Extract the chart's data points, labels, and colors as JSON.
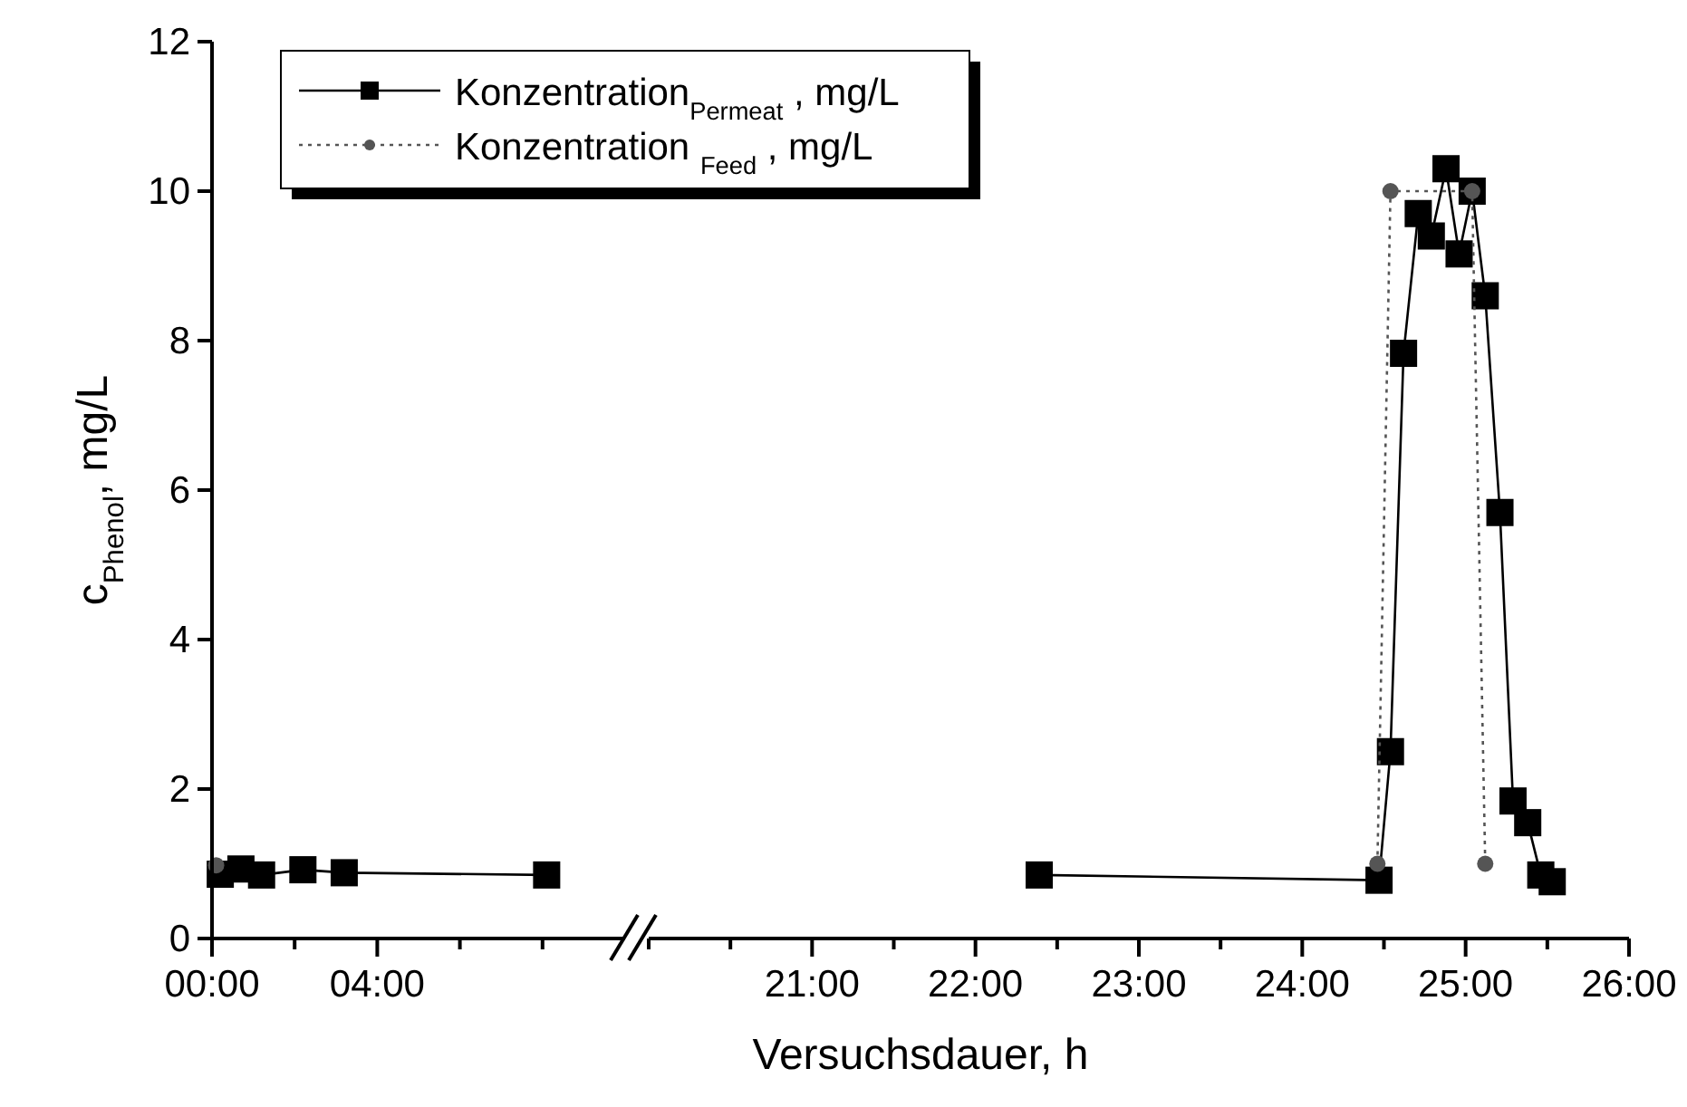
{
  "chart_data": [
    {
      "type": "line",
      "ylabel": "c$_{Phenol}$, mg/L",
      "xlim": [
        0,
        10
      ],
      "xticks": [
        {
          "value": 0,
          "label": "00:00"
        },
        {
          "value": 2,
          "label": null
        },
        {
          "value": 4,
          "label": "04:00"
        },
        {
          "value": 6,
          "label": null
        },
        {
          "value": 8,
          "label": null
        }
      ],
      "ylim": [
        0,
        12
      ],
      "yticks": [
        0,
        2,
        4,
        6,
        8,
        10,
        12
      ],
      "legend": "top right",
      "grid": false,
      "series": [
        {
          "name": "Konzentration$_{Permeat}$ , mg/L",
          "color": "#000000",
          "marker": "square",
          "line_style": "solid",
          "x": [
            0.2,
            0.7,
            1.2,
            2.2,
            3.2,
            8.1
          ],
          "values": [
            0.86,
            0.93,
            0.85,
            0.92,
            0.88,
            0.85
          ]
        },
        {
          "name": "Konzentration $_{Feed}$ ,  mg/L",
          "color": "#555555",
          "marker": "circle",
          "line_style": "dotted",
          "x": [
            0.1
          ],
          "values": [
            0.98
          ]
        }
      ]
    },
    {
      "type": "line",
      "xlabel": "Versuchsdauer, h",
      "xlim": [
        20,
        26
      ],
      "xticks": [
        {
          "value": 20,
          "label": null
        },
        {
          "value": 20.5,
          "label": null
        },
        {
          "value": 21,
          "label": "21:00"
        },
        {
          "value": 21.5,
          "label": null
        },
        {
          "value": 22,
          "label": "22:00"
        },
        {
          "value": 22.5,
          "label": null
        },
        {
          "value": 23,
          "label": "23:00"
        },
        {
          "value": 23.5,
          "label": null
        },
        {
          "value": 24,
          "label": "24:00"
        },
        {
          "value": 24.5,
          "label": null
        },
        {
          "value": 25,
          "label": "25:00"
        },
        {
          "value": 25.5,
          "label": null
        },
        {
          "value": 26,
          "label": "26:00"
        }
      ],
      "ylim": [
        0,
        12
      ],
      "tick_labels": "x",
      "grid": false,
      "series": [
        {
          "color": "#000000",
          "marker": "square",
          "line_style": "solid",
          "x": [
            22.39,
            24.47,
            24.54,
            24.62,
            24.71,
            24.79,
            24.88,
            24.96,
            25.04,
            25.12,
            25.21,
            25.29,
            25.38,
            25.46,
            25.53
          ],
          "values": [
            0.85,
            0.78,
            2.5,
            7.83,
            9.7,
            9.4,
            10.3,
            9.16,
            10.0,
            8.6,
            5.7,
            1.84,
            1.55,
            0.85,
            0.76
          ]
        },
        {
          "color": "#555555",
          "marker": "circle",
          "line_style": "dotted",
          "x": [
            24.46,
            24.54,
            25.04,
            25.12
          ],
          "values": [
            1.0,
            10.0,
            10.0,
            1.0
          ]
        }
      ]
    }
  ]
}
